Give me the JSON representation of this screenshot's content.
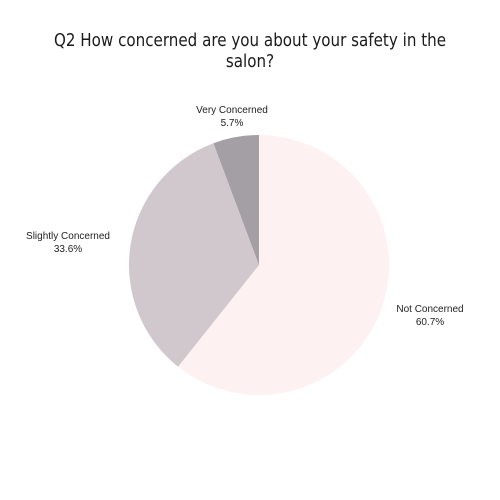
{
  "chart_data": {
    "type": "pie",
    "title": "Q2 How concerned are you about your safety in the salon?",
    "slices": [
      {
        "label": "Not Concerned",
        "value": 60.7,
        "value_label": "60.7%",
        "color": "#fdf1f1"
      },
      {
        "label": "Slightly Concerned",
        "value": 33.6,
        "value_label": "33.6%",
        "color": "#d0c8cc"
      },
      {
        "label": "Very Concerned",
        "value": 5.7,
        "value_label": "5.7%",
        "color": "#a49fa4"
      }
    ],
    "start_angle": "12 o'clock",
    "direction": "clockwise",
    "legend": "none",
    "labels": "outside"
  }
}
